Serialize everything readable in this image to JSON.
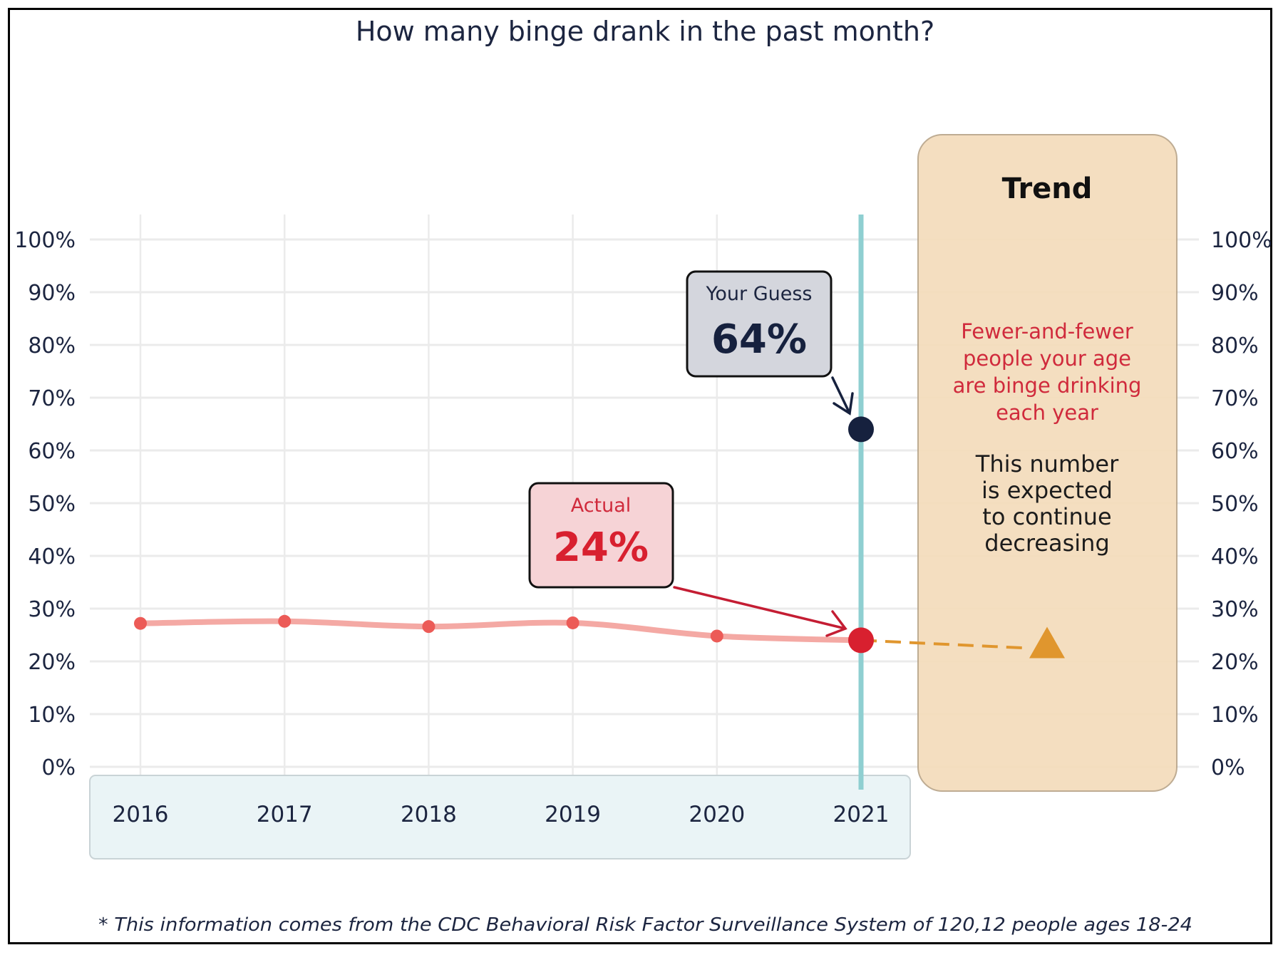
{
  "chart_data": {
    "type": "line",
    "title": "How many binge drank in the past month?",
    "x": [
      "2016",
      "2017",
      "2018",
      "2019",
      "2020",
      "2021"
    ],
    "series": [
      {
        "name": "Actual",
        "values": [
          27.2,
          27.6,
          26.6,
          27.3,
          24.8,
          24
        ]
      }
    ],
    "guess": {
      "label": "Your Guess",
      "value": 64,
      "value_label": "64%",
      "x": "2021"
    },
    "actual": {
      "label": "Actual",
      "value": 24,
      "value_label": "24%",
      "x": "2021"
    },
    "trend_projection": {
      "from": 24,
      "to": 22.5
    },
    "yticks": [
      0,
      10,
      20,
      30,
      40,
      50,
      60,
      70,
      80,
      90,
      100
    ],
    "ytick_labels": [
      "0%",
      "10%",
      "20%",
      "30%",
      "40%",
      "50%",
      "60%",
      "70%",
      "80%",
      "90%",
      "100%"
    ],
    "ylim": [
      0,
      100
    ],
    "xlabel": "",
    "ylabel": "",
    "grid": true,
    "trend_panel": {
      "title": "Trend",
      "red_lines": [
        "Fewer-and-fewer",
        "people your age",
        "are binge drinking",
        "each year"
      ],
      "black_lines": [
        "This number",
        "is expected",
        "to continue",
        "decreasing"
      ]
    },
    "footnote": "* This information comes from the CDC Behavioral Risk Factor Surveillance System of 120,12 people ages 18-24",
    "colors": {
      "line": "#f4a9a4",
      "point": "#ec5b57",
      "actual": "#d8202f",
      "guess": "#16213e",
      "highlight": "#8fcfd1",
      "trend": "#e0962e",
      "trend_bg": "#f4dcbb",
      "axis_bg": "#eaf4f6",
      "guess_bg": "#d4d6dd",
      "actual_bg": "#f6d3d6",
      "grid": "#ebebeb"
    }
  }
}
